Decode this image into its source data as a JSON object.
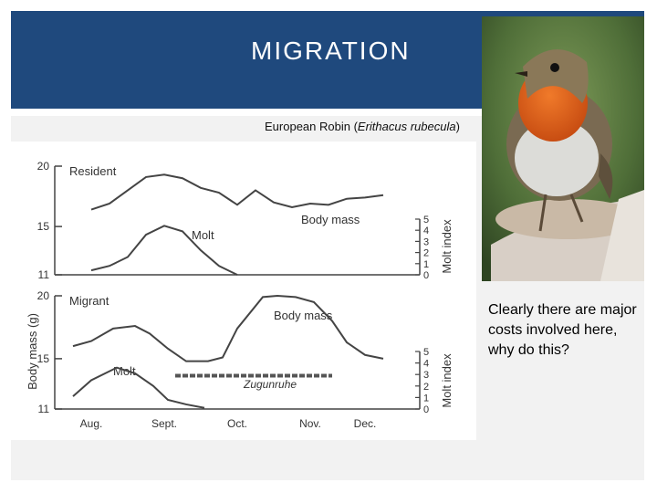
{
  "slide": {
    "title": "MIGRATION",
    "caption_prefix": "European Robin (",
    "caption_species": "Erithacus rubecula",
    "caption_suffix": ")",
    "note": "Clearly there are major costs involved here, why do this?"
  },
  "colors": {
    "header": "#1f497d",
    "line": "#444444"
  },
  "chart_data": [
    {
      "type": "line",
      "panel_label": "Resident",
      "ylabel": "Body mass (g)",
      "ylabel2": "Molt index",
      "ylim": [
        11,
        20
      ],
      "yticks": [
        "20",
        "15",
        "11"
      ],
      "y2lim": [
        0,
        5
      ],
      "y2ticks": [
        "5",
        "4",
        "3",
        "2",
        "1",
        "0"
      ],
      "xlim": [
        0,
        5
      ],
      "series": [
        {
          "name": "Body mass",
          "x": [
            0.5,
            0.75,
            1.25,
            1.5,
            1.75,
            2.0,
            2.25,
            2.5,
            2.75,
            3.0,
            3.25,
            3.5,
            3.75,
            4.0,
            4.25,
            4.5
          ],
          "values": [
            16.4,
            16.9,
            19.1,
            19.3,
            19.0,
            18.2,
            17.8,
            16.8,
            18.0,
            17.0,
            16.6,
            16.9,
            16.8,
            17.3,
            17.4,
            17.6
          ]
        },
        {
          "name": "Molt",
          "x": [
            0.5,
            0.75,
            1.0,
            1.25,
            1.5,
            1.75,
            2.0,
            2.25,
            2.5
          ],
          "values": [
            0.4,
            0.8,
            1.6,
            3.6,
            4.4,
            3.9,
            2.2,
            0.8,
            0.0
          ]
        }
      ]
    },
    {
      "type": "line",
      "panel_label": "Migrant",
      "ylim": [
        11,
        20
      ],
      "yticks": [
        "20",
        "15",
        "11"
      ],
      "y2lim": [
        0,
        5
      ],
      "y2ticks": [
        "5",
        "4",
        "3",
        "2",
        "1",
        "0"
      ],
      "xlim": [
        0,
        5
      ],
      "categories": [
        "Aug.",
        "Sept.",
        "Oct.",
        "Nov.",
        "Dec."
      ],
      "category_x": [
        0.5,
        1.5,
        2.5,
        3.5,
        4.25
      ],
      "series": [
        {
          "name": "Body mass",
          "x": [
            0.25,
            0.5,
            0.8,
            1.1,
            1.3,
            1.55,
            1.8,
            2.1,
            2.3,
            2.5,
            2.85,
            3.05,
            3.3,
            3.55,
            3.8,
            4.0,
            4.25,
            4.5
          ],
          "values": [
            16.0,
            16.4,
            17.4,
            17.6,
            17.0,
            15.8,
            14.8,
            14.8,
            15.1,
            17.4,
            19.9,
            20.0,
            19.9,
            19.5,
            18.0,
            16.3,
            15.3,
            15.0
          ]
        },
        {
          "name": "Molt",
          "x": [
            0.25,
            0.5,
            0.85,
            1.1,
            1.35,
            1.55,
            1.8,
            2.05
          ],
          "values": [
            1.1,
            2.5,
            3.6,
            3.1,
            2.0,
            0.8,
            0.4,
            0.1
          ]
        }
      ],
      "zugunruhe": {
        "label": "Zugunruhe",
        "x_start": 1.65,
        "x_end": 3.8,
        "molt_level": 2.9
      }
    }
  ]
}
